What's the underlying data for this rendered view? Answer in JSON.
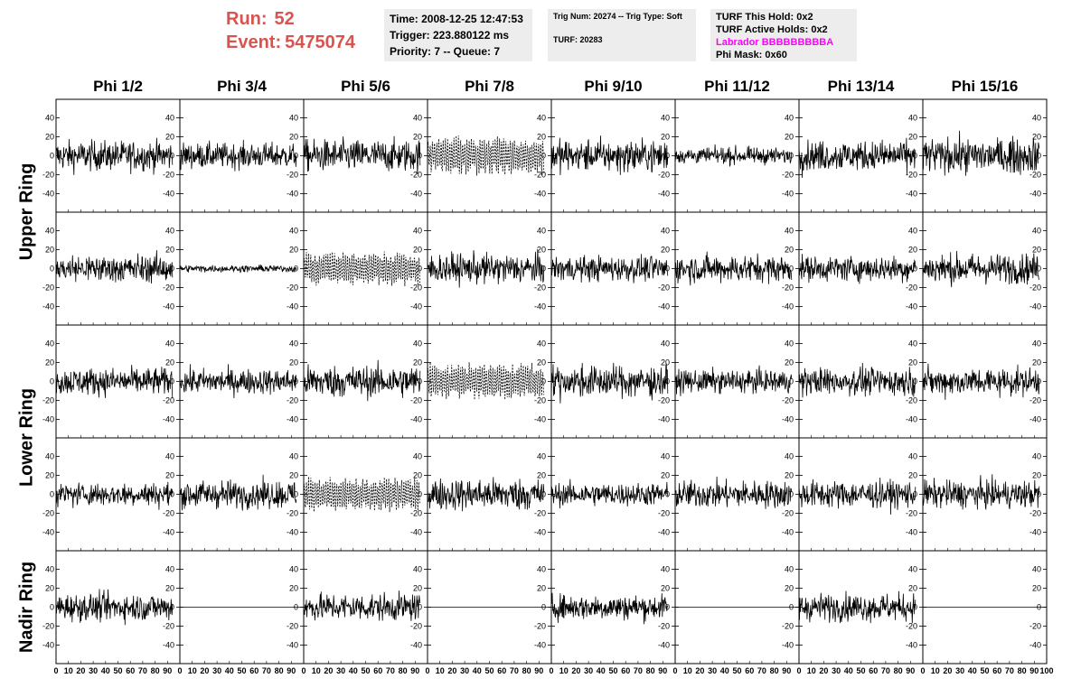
{
  "header": {
    "run_label": "Run:",
    "run_value": "52",
    "event_label": "Event:",
    "event_value": "5475074",
    "info1": [
      "Time: 2008-12-25 12:47:53",
      "Trigger: 223.880122 ms",
      "Priority: 7 -- Queue: 7"
    ],
    "info2": [
      "Trig Num: 20274 -- Trig Type: Soft",
      "TURF: 20283"
    ],
    "info3": [
      "TURF This Hold: 0x2",
      "TURF Active Holds: 0x2",
      "Labrador BBBBBBBBBA",
      "Phi Mask: 0x60"
    ]
  },
  "chart_data": {
    "type": "line",
    "title": "",
    "columns": [
      "Phi 1/2",
      "Phi 3/4",
      "Phi 5/6",
      "Phi 7/8",
      "Phi 9/10",
      "Phi 11/12",
      "Phi 13/14",
      "Phi 15/16"
    ],
    "row_groups": [
      {
        "label": "Upper Ring",
        "rows": [
          0,
          1
        ]
      },
      {
        "label": "Lower Ring",
        "rows": [
          2,
          3
        ]
      },
      {
        "label": "Nadir Ring",
        "rows": [
          4
        ]
      }
    ],
    "xlim": [
      0,
      100
    ],
    "ylim": [
      -50,
      50
    ],
    "x_ticks": [
      "0",
      "10",
      "20",
      "30",
      "40",
      "50",
      "60",
      "70",
      "80",
      "90",
      "100"
    ],
    "y_ticks": [
      "-40",
      "-20",
      "0",
      "20",
      "40"
    ],
    "xlabel": "",
    "ylabel": "",
    "panels": [
      [
        {
          "amp": 13,
          "style": "solid"
        },
        {
          "amp": 11,
          "style": "solid"
        },
        {
          "amp": 14,
          "style": "solid"
        },
        {
          "amp": 18,
          "style": "dashed"
        },
        {
          "amp": 14,
          "style": "solid"
        },
        {
          "amp": 7,
          "style": "solid"
        },
        {
          "amp": 13,
          "style": "solid"
        },
        {
          "amp": 15,
          "style": "solid"
        }
      ],
      [
        {
          "amp": 12,
          "style": "solid"
        },
        {
          "amp": 3,
          "style": "solid"
        },
        {
          "amp": 16,
          "style": "dashed"
        },
        {
          "amp": 13,
          "style": "solid"
        },
        {
          "amp": 11,
          "style": "solid"
        },
        {
          "amp": 12,
          "style": "solid"
        },
        {
          "amp": 11,
          "style": "solid"
        },
        {
          "amp": 13,
          "style": "solid"
        }
      ],
      [
        {
          "amp": 12,
          "style": "solid"
        },
        {
          "amp": 11,
          "style": "solid"
        },
        {
          "amp": 14,
          "style": "solid"
        },
        {
          "amp": 17,
          "style": "dashed"
        },
        {
          "amp": 14,
          "style": "solid"
        },
        {
          "amp": 10,
          "style": "solid"
        },
        {
          "amp": 12,
          "style": "solid"
        },
        {
          "amp": 12,
          "style": "solid"
        }
      ],
      [
        {
          "amp": 10,
          "style": "solid"
        },
        {
          "amp": 12,
          "style": "solid"
        },
        {
          "amp": 16,
          "style": "dashed"
        },
        {
          "amp": 14,
          "style": "solid"
        },
        {
          "amp": 10,
          "style": "solid"
        },
        {
          "amp": 12,
          "style": "solid"
        },
        {
          "amp": 12,
          "style": "solid"
        },
        {
          "amp": 12,
          "style": "solid"
        }
      ],
      [
        {
          "amp": 12,
          "style": "solid"
        },
        {
          "amp": 0,
          "style": "solid"
        },
        {
          "amp": 12,
          "style": "solid"
        },
        {
          "amp": 0,
          "style": "solid"
        },
        {
          "amp": 11,
          "style": "solid"
        },
        {
          "amp": 0,
          "style": "solid"
        },
        {
          "amp": 12,
          "style": "solid"
        },
        {
          "amp": 0,
          "style": "solid"
        }
      ]
    ]
  }
}
